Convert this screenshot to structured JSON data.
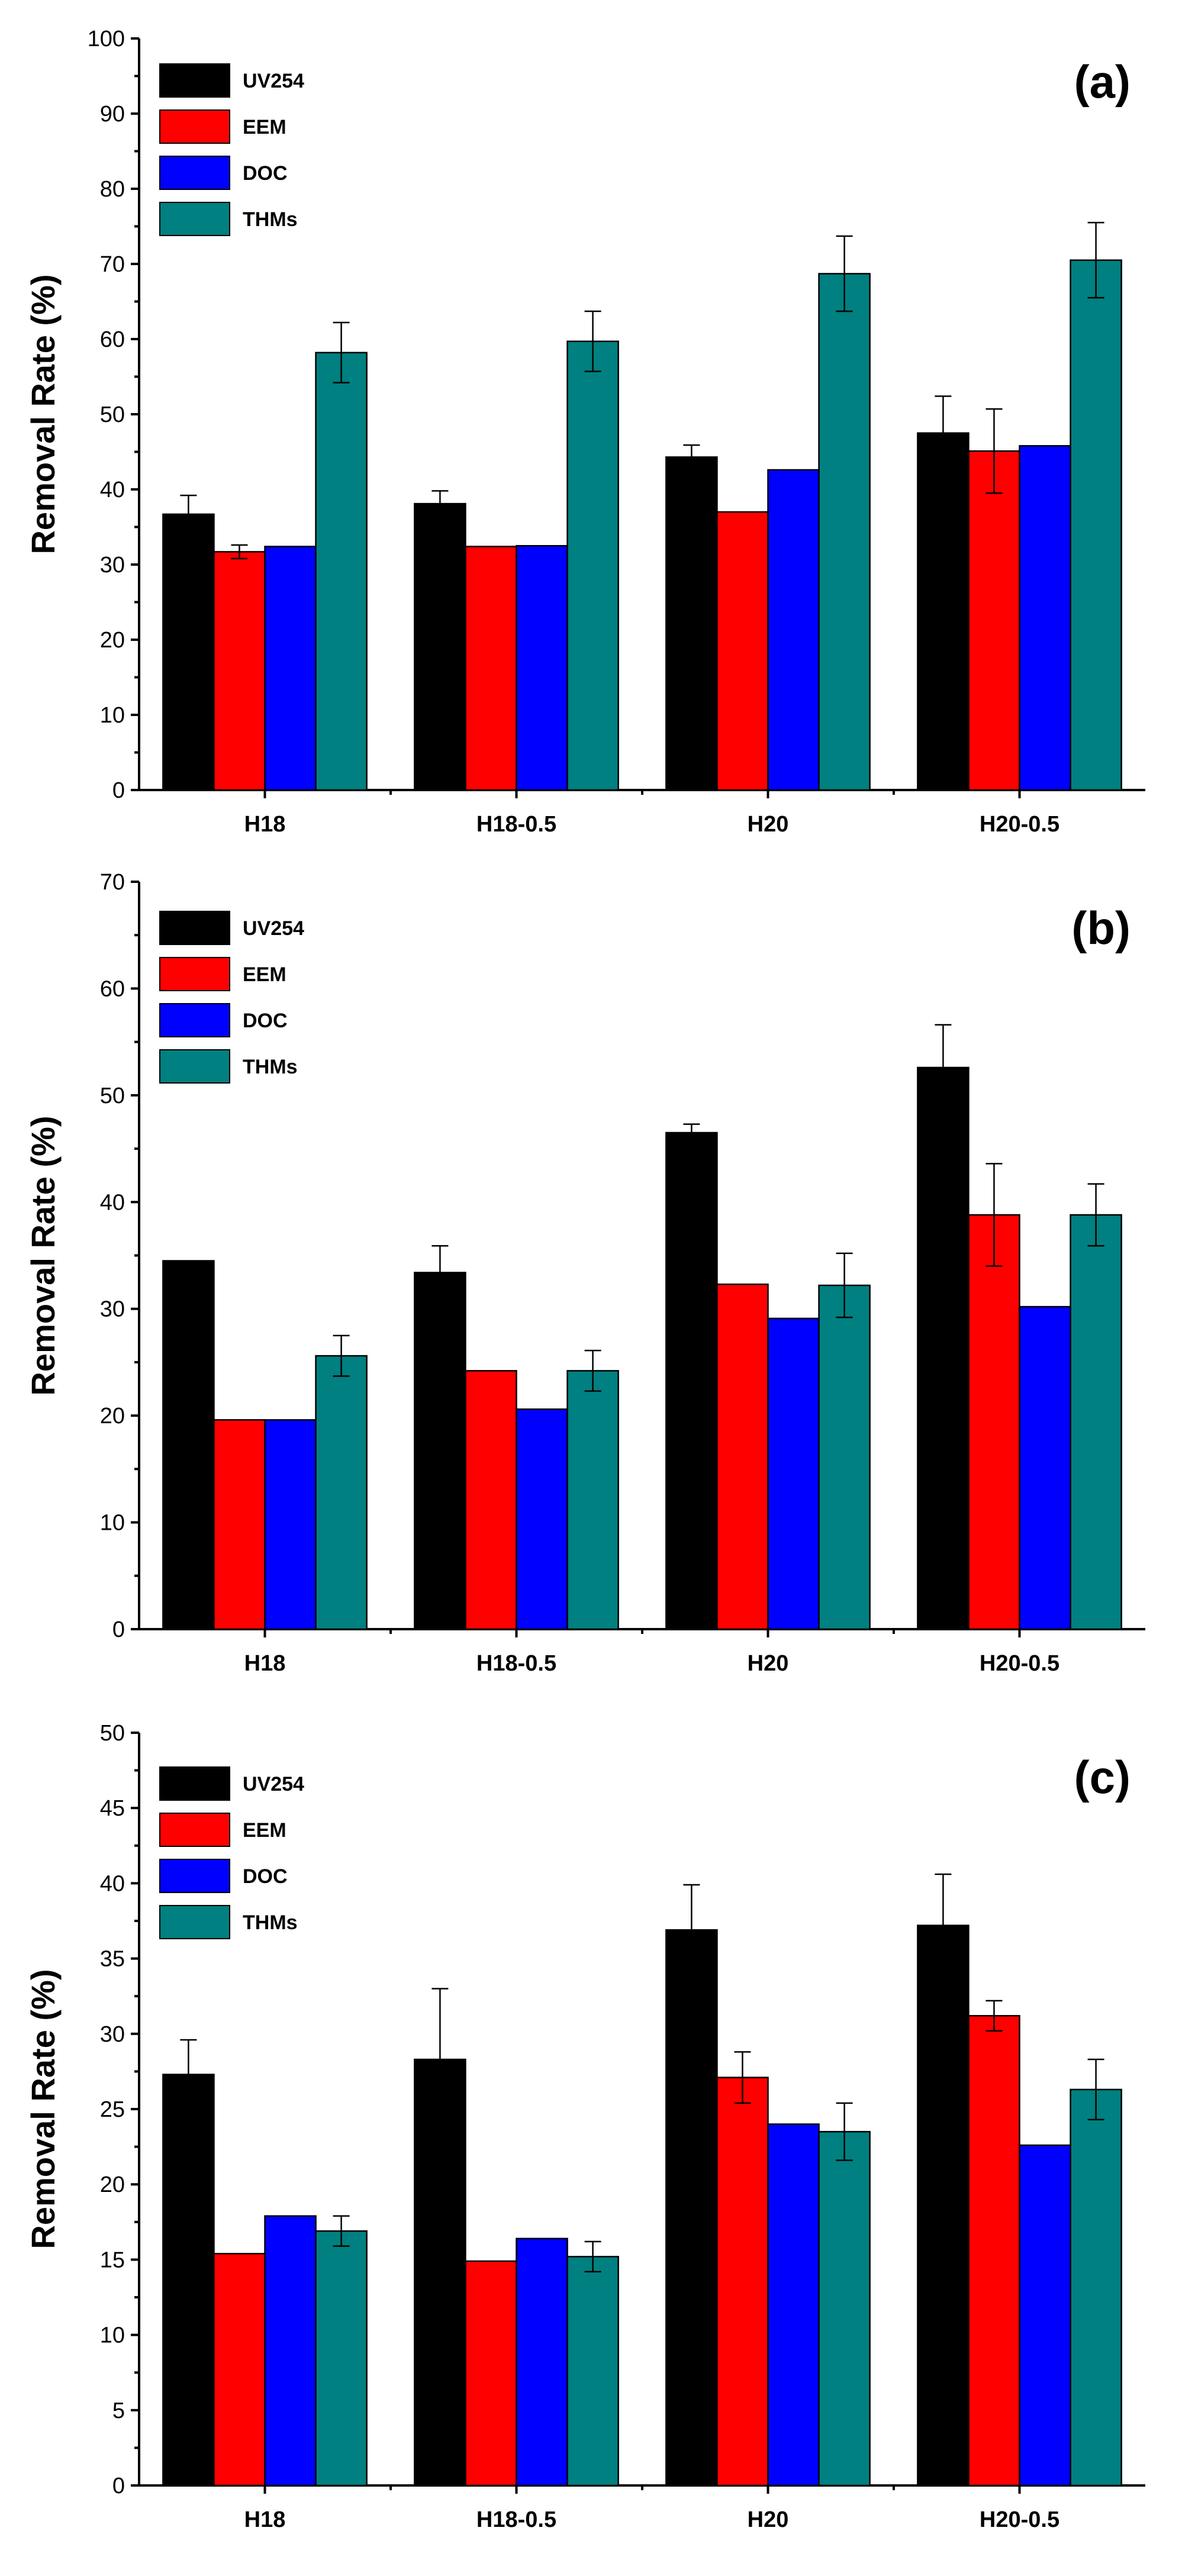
{
  "figure": {
    "colors": {
      "UV254": "#000000",
      "EEM": "#ff0000",
      "DOC": "#0000ff",
      "THMs": "#008080"
    }
  },
  "chart_data": [
    {
      "type": "bar",
      "panel_label": "(a)",
      "ylabel": "Removal Rate (%)",
      "xlabel": "",
      "ylim": [
        0,
        100
      ],
      "yticks": [
        0,
        10,
        20,
        30,
        40,
        50,
        60,
        70,
        80,
        90,
        100
      ],
      "legend_position": "top-left",
      "categories": [
        "H18",
        "H18-0.5",
        "H20",
        "H20-0.5"
      ],
      "series": [
        {
          "name": "UV254",
          "color": "#000000",
          "values": [
            36.7,
            38.1,
            44.3,
            47.5
          ],
          "errors": [
            2.5,
            1.7,
            1.6,
            4.9
          ]
        },
        {
          "name": "EEM",
          "color": "#ff0000",
          "values": [
            31.7,
            32.4,
            37.0,
            45.1
          ],
          "errors": [
            0.9,
            0,
            0,
            5.6
          ]
        },
        {
          "name": "DOC",
          "color": "#0000ff",
          "values": [
            32.4,
            32.5,
            42.6,
            45.8
          ],
          "errors": [
            0,
            0,
            0,
            0
          ]
        },
        {
          "name": "THMs",
          "color": "#008080",
          "values": [
            58.2,
            59.7,
            68.7,
            70.5
          ],
          "errors": [
            4.0,
            4.0,
            5.0,
            5.0
          ]
        }
      ]
    },
    {
      "type": "bar",
      "panel_label": "(b)",
      "ylabel": "Removal Rate (%)",
      "xlabel": "",
      "ylim": [
        0,
        70
      ],
      "yticks": [
        0,
        10,
        20,
        30,
        40,
        50,
        60,
        70
      ],
      "legend_position": "top-left",
      "categories": [
        "H18",
        "H18-0.5",
        "H20",
        "H20-0.5"
      ],
      "series": [
        {
          "name": "UV254",
          "color": "#000000",
          "values": [
            34.5,
            33.4,
            46.5,
            52.6
          ],
          "errors": [
            0,
            2.5,
            0.8,
            4.0
          ]
        },
        {
          "name": "EEM",
          "color": "#ff0000",
          "values": [
            19.6,
            24.2,
            32.3,
            38.8
          ],
          "errors": [
            0,
            0,
            0,
            4.8
          ]
        },
        {
          "name": "DOC",
          "color": "#0000ff",
          "values": [
            19.6,
            20.6,
            29.1,
            30.2
          ],
          "errors": [
            0,
            0,
            0,
            0
          ]
        },
        {
          "name": "THMs",
          "color": "#008080",
          "values": [
            25.6,
            24.2,
            32.2,
            38.8
          ],
          "errors": [
            1.9,
            1.9,
            3.0,
            2.9
          ]
        }
      ]
    },
    {
      "type": "bar",
      "panel_label": "(c)",
      "ylabel": "Removal Rate (%)",
      "xlabel": "",
      "ylim": [
        0,
        50
      ],
      "yticks": [
        0,
        5,
        10,
        15,
        20,
        25,
        30,
        35,
        40,
        45,
        50
      ],
      "legend_position": "top-left",
      "categories": [
        "H18",
        "H18-0.5",
        "H20",
        "H20-0.5"
      ],
      "series": [
        {
          "name": "UV254",
          "color": "#000000",
          "values": [
            27.3,
            28.3,
            36.9,
            37.2
          ],
          "errors": [
            2.3,
            4.7,
            3.0,
            3.4
          ]
        },
        {
          "name": "EEM",
          "color": "#ff0000",
          "values": [
            15.4,
            14.9,
            27.1,
            31.2
          ],
          "errors": [
            0,
            0,
            1.7,
            1.0
          ]
        },
        {
          "name": "DOC",
          "color": "#0000ff",
          "values": [
            17.9,
            16.4,
            24.0,
            22.6
          ],
          "errors": [
            0,
            0,
            0,
            0
          ]
        },
        {
          "name": "THMs",
          "color": "#008080",
          "values": [
            16.9,
            15.2,
            23.5,
            26.3
          ],
          "errors": [
            1.0,
            1.0,
            1.9,
            2.0
          ]
        }
      ]
    }
  ]
}
